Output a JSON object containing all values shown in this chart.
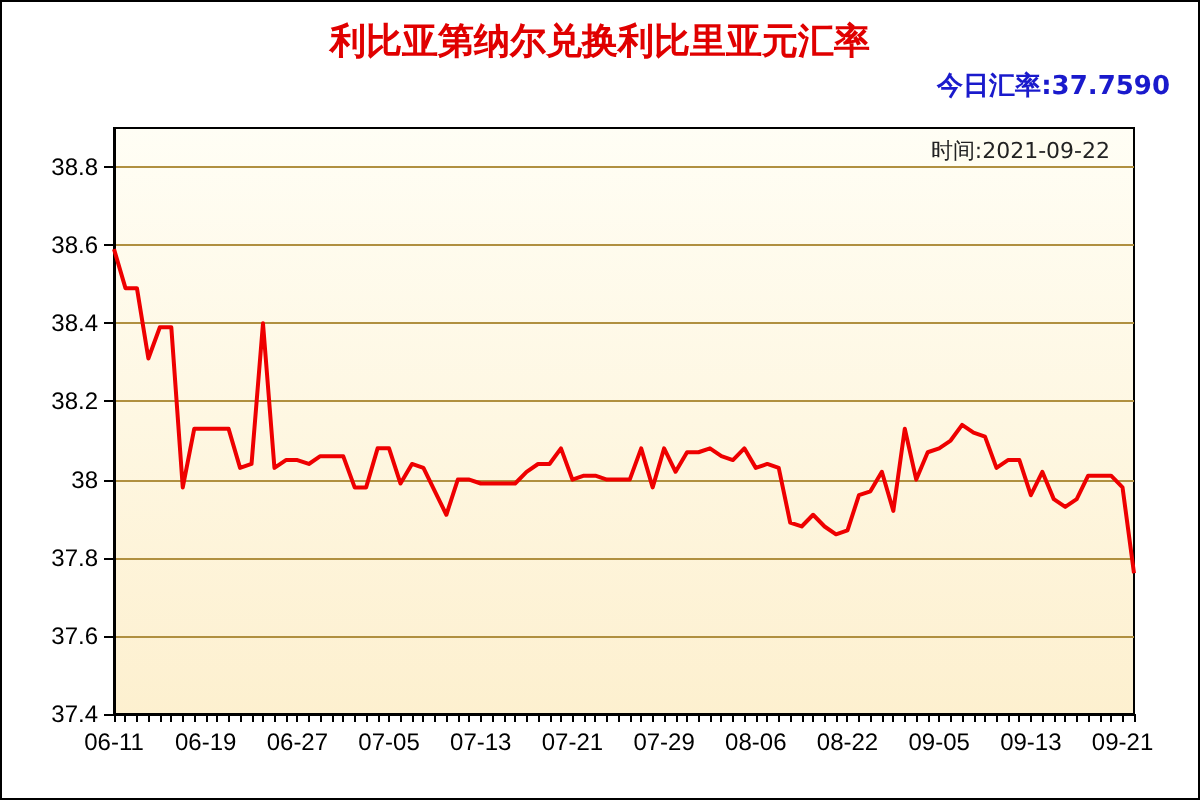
{
  "chart_data": {
    "type": "line",
    "title": "利比亚第纳尔兑换利比里亚元汇率",
    "annotations": [
      "今日汇率:37.7590",
      "时间:2021-09-22"
    ],
    "categories": [
      "06-11",
      null,
      null,
      null,
      null,
      null,
      null,
      null,
      "06-19",
      null,
      null,
      null,
      null,
      null,
      null,
      null,
      "06-27",
      null,
      null,
      null,
      null,
      null,
      null,
      null,
      "07-05",
      null,
      null,
      null,
      null,
      null,
      null,
      null,
      "07-13",
      null,
      null,
      null,
      null,
      null,
      null,
      null,
      "07-21",
      null,
      null,
      null,
      null,
      null,
      null,
      null,
      "07-29",
      null,
      null,
      null,
      null,
      null,
      null,
      null,
      "08-06",
      null,
      null,
      null,
      null,
      null,
      null,
      null,
      "08-22",
      null,
      null,
      null,
      null,
      null,
      null,
      null,
      "09-05",
      null,
      null,
      null,
      null,
      null,
      null,
      null,
      "09-13",
      null,
      null,
      null,
      null,
      null,
      null,
      null,
      "09-21",
      null
    ],
    "series": [
      {
        "color": "#ee0000",
        "values": [
          38.59,
          38.49,
          38.49,
          38.31,
          38.39,
          38.39,
          37.98,
          38.13,
          38.13,
          38.13,
          38.13,
          38.03,
          38.04,
          38.4,
          38.03,
          38.05,
          38.05,
          38.04,
          38.06,
          38.06,
          38.06,
          37.98,
          37.98,
          38.08,
          38.08,
          37.99,
          38.04,
          38.03,
          37.97,
          37.91,
          38.0,
          38.0,
          37.99,
          37.99,
          37.99,
          37.99,
          38.02,
          38.04,
          38.04,
          38.08,
          38.0,
          38.01,
          38.01,
          38.0,
          38.0,
          38.0,
          38.08,
          37.98,
          38.08,
          38.02,
          38.07,
          38.07,
          38.08,
          38.06,
          38.05,
          38.08,
          38.03,
          38.04,
          38.03,
          37.89,
          37.88,
          37.91,
          37.88,
          37.86,
          37.87,
          37.96,
          37.97,
          38.02,
          37.92,
          38.13,
          38.0,
          38.07,
          38.08,
          38.1,
          38.14,
          38.12,
          38.11,
          38.03,
          38.05,
          38.05,
          37.96,
          38.02,
          37.95,
          37.93,
          37.95,
          38.01,
          38.01,
          38.01,
          37.98,
          37.76
        ]
      }
    ],
    "ylim": [
      37.4,
      38.9
    ],
    "yticks": [
      37.4,
      37.6,
      37.8,
      38.0,
      38.2,
      38.4,
      38.6,
      38.8
    ],
    "grid": "y",
    "marker": "none",
    "line_style": "solid"
  }
}
